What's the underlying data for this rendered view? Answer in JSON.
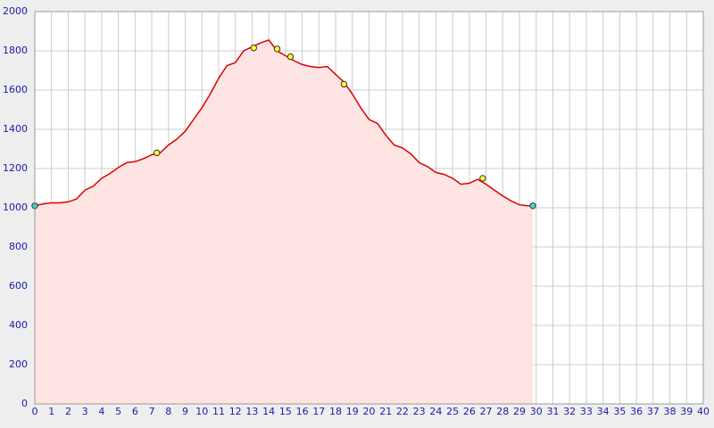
{
  "chart_data": {
    "type": "area",
    "x": [
      0,
      0.5,
      1,
      1.5,
      2,
      2.5,
      3,
      3.5,
      4,
      4.5,
      5,
      5.5,
      6,
      6.5,
      7,
      7.5,
      8,
      8.5,
      9,
      9.5,
      10,
      10.5,
      11,
      11.5,
      12,
      12.5,
      13,
      13.5,
      14,
      14.5,
      15,
      15.5,
      16,
      16.5,
      17,
      17.5,
      18,
      18.5,
      19,
      19.5,
      20,
      20.5,
      21,
      21.5,
      22,
      22.5,
      23,
      23.5,
      24,
      24.5,
      25,
      25.5,
      26,
      26.5,
      27,
      27.5,
      28,
      28.5,
      29,
      29.5,
      29.8
    ],
    "series": [
      {
        "color": "#dd0000",
        "fill": "#ffe4e4",
        "values": [
          1010,
          1020,
          1025,
          1025,
          1030,
          1045,
          1090,
          1110,
          1150,
          1175,
          1205,
          1230,
          1235,
          1250,
          1270,
          1280,
          1320,
          1350,
          1390,
          1450,
          1510,
          1580,
          1660,
          1725,
          1740,
          1800,
          1820,
          1840,
          1855,
          1800,
          1775,
          1750,
          1730,
          1720,
          1715,
          1720,
          1680,
          1640,
          1580,
          1510,
          1450,
          1430,
          1370,
          1320,
          1305,
          1275,
          1230,
          1210,
          1180,
          1170,
          1150,
          1120,
          1125,
          1145,
          1120,
          1090,
          1060,
          1035,
          1015,
          1010,
          1010
        ]
      }
    ],
    "points": [
      {
        "color": "#33dddd",
        "x": [
          0,
          29.8
        ],
        "y": [
          1010,
          1010
        ]
      },
      {
        "color": "#ffff33",
        "x": [
          7.3,
          13.1,
          14.5,
          15.3,
          18.5,
          26.8
        ],
        "y": [
          1280,
          1815,
          1810,
          1770,
          1630,
          1150
        ]
      }
    ],
    "xlim": [
      0,
      40
    ],
    "ylim": [
      0,
      2000
    ],
    "xticks": [
      0,
      1,
      2,
      3,
      4,
      5,
      6,
      7,
      8,
      9,
      10,
      11,
      12,
      13,
      14,
      15,
      16,
      17,
      18,
      19,
      20,
      21,
      22,
      23,
      24,
      25,
      26,
      27,
      28,
      29,
      30,
      31,
      32,
      33,
      34,
      35,
      36,
      37,
      38,
      39,
      40
    ],
    "yticks": [
      0,
      200,
      400,
      600,
      800,
      1000,
      1200,
      1400,
      1600,
      1800,
      2000
    ],
    "grid": true
  }
}
